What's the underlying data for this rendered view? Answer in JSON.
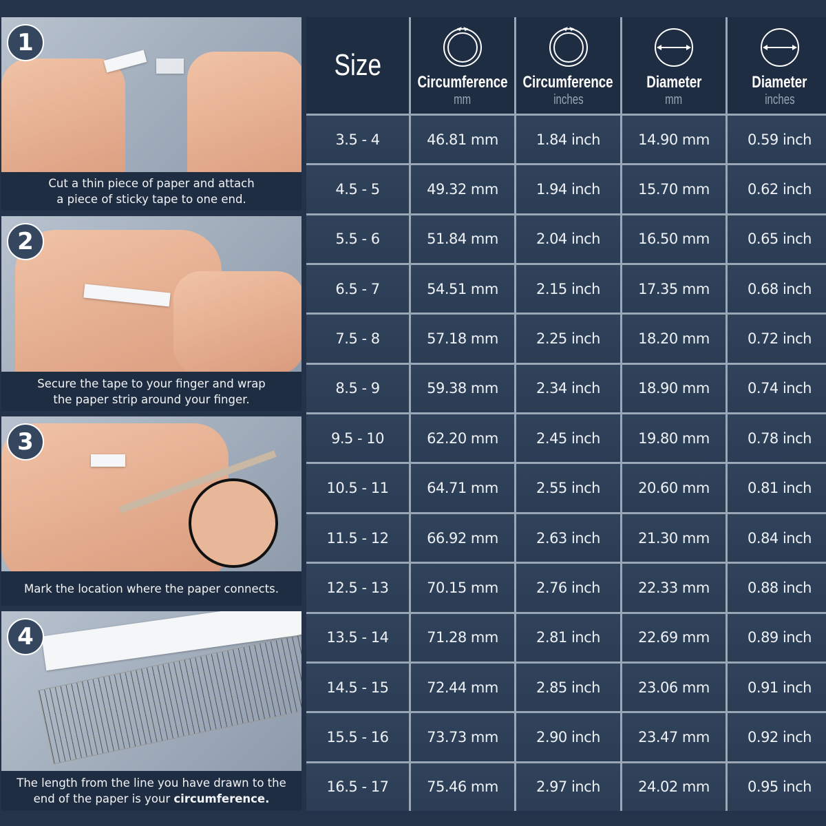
{
  "steps": [
    {
      "number": "1",
      "caption_lines": [
        "Cut a thin piece of paper and attach",
        "a piece of sticky tape to one end."
      ]
    },
    {
      "number": "2",
      "caption_lines": [
        "Secure the tape to your finger and wrap",
        "the paper strip around your finger."
      ]
    },
    {
      "number": "3",
      "caption_lines": [
        "Mark the location where the paper connects."
      ]
    },
    {
      "number": "4",
      "caption_lines": [
        "The length from the line you have drawn to the",
        "end of the paper is your "
      ],
      "caption_bold": "circumference."
    }
  ],
  "table": {
    "headers": [
      {
        "title": "Size",
        "unit": "",
        "icon": "size"
      },
      {
        "title": "Circumference",
        "unit": "mm",
        "icon": "circumference-icon"
      },
      {
        "title": "Circumference",
        "unit": "inches",
        "icon": "circumference-icon"
      },
      {
        "title": "Diameter",
        "unit": "mm",
        "icon": "diameter-icon"
      },
      {
        "title": "Diameter",
        "unit": "inches",
        "icon": "diameter-icon"
      }
    ],
    "rows": [
      [
        "3.5 - 4",
        "46.81 mm",
        "1.84 inch",
        "14.90 mm",
        "0.59 inch"
      ],
      [
        "4.5 - 5",
        "49.32 mm",
        "1.94 inch",
        "15.70 mm",
        "0.62 inch"
      ],
      [
        "5.5 - 6",
        "51.84 mm",
        "2.04 inch",
        "16.50 mm",
        "0.65 inch"
      ],
      [
        "6.5 - 7",
        "54.51 mm",
        "2.15 inch",
        "17.35 mm",
        "0.68 inch"
      ],
      [
        "7.5 - 8",
        "57.18 mm",
        "2.25 inch",
        "18.20 mm",
        "0.72 inch"
      ],
      [
        "8.5 - 9",
        "59.38 mm",
        "2.34 inch",
        "18.90 mm",
        "0.74 inch"
      ],
      [
        "9.5 - 10",
        "62.20 mm",
        "2.45 inch",
        "19.80 mm",
        "0.78 inch"
      ],
      [
        "10.5 - 11",
        "64.71 mm",
        "2.55 inch",
        "20.60 mm",
        "0.81 inch"
      ],
      [
        "11.5 - 12",
        "66.92 mm",
        "2.63 inch",
        "21.30 mm",
        "0.84 inch"
      ],
      [
        "12.5 - 13",
        "70.15 mm",
        "2.76 inch",
        "22.33 mm",
        "0.88 inch"
      ],
      [
        "13.5 - 14",
        "71.28 mm",
        "2.81 inch",
        "22.69 mm",
        "0.89 inch"
      ],
      [
        "14.5 - 15",
        "72.44 mm",
        "2.85 inch",
        "23.06 mm",
        "0.91 inch"
      ],
      [
        "15.5 - 16",
        "73.73 mm",
        "2.90 inch",
        "23.47 mm",
        "0.92 inch"
      ],
      [
        "16.5 - 17",
        "75.46 mm",
        "2.97 inch",
        "24.02 mm",
        "0.95 inch"
      ]
    ]
  },
  "colors": {
    "background": "#25334a",
    "header": "#1f2d42",
    "row": "#30435b",
    "grid": "#9aa7b6"
  }
}
